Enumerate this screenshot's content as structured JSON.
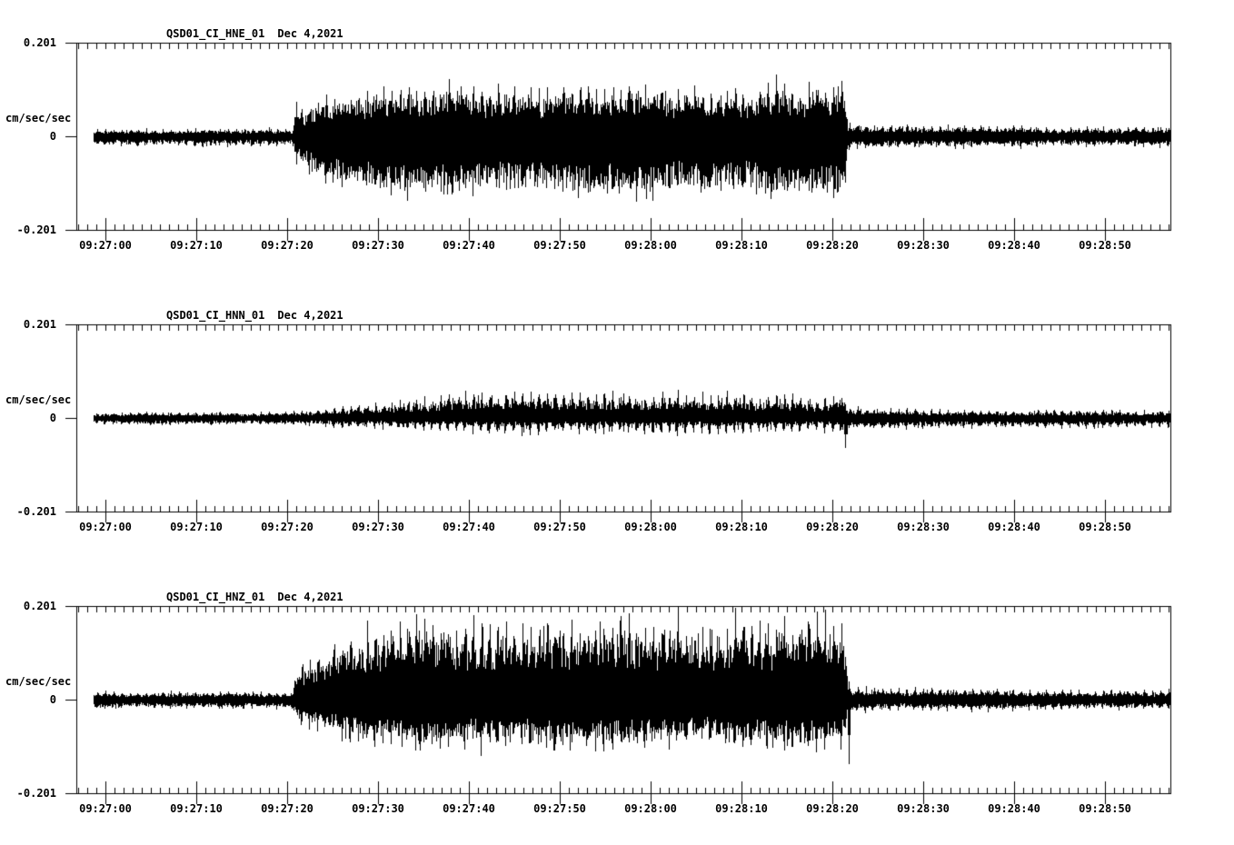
{
  "page": {
    "background": "#ffffff",
    "foreground": "#000000",
    "description": "Three-channel strong-motion seismogram display, station QSD01 (network CI), Dec 4, 2021"
  },
  "chart_data": [
    {
      "type": "line",
      "subtype": "seismogram",
      "station": "QSD01_CI_HNE_01",
      "date": "Dec 4,2021",
      "ylabel": "cm/sec/sec",
      "y_ticks": [
        "0.201",
        "0",
        "-0.201"
      ],
      "ylim": [
        -0.201,
        0.201
      ],
      "x_ticks": [
        "09:27:00",
        "09:27:10",
        "09:27:20",
        "09:27:30",
        "09:27:40",
        "09:27:50",
        "09:28:00",
        "09:28:10",
        "09:28:20",
        "09:28:30",
        "09:28:40",
        "09:28:50"
      ],
      "x_axis": {
        "minor_tick_interval_sec": 1,
        "major_tick_interval_sec": 10,
        "window_start": "09:26:57",
        "window_end": "09:28:57"
      },
      "strong_motion": {
        "start": "09:27:21",
        "end": "09:28:21",
        "peak_amplitude": 0.13
      },
      "envelope_breakpoints_t_cu_cd_pu_pd": [
        [
          -1.3,
          0.01,
          0.014,
          0.018,
          0.024
        ],
        [
          20.6,
          0.01,
          0.014,
          0.018,
          0.024
        ],
        [
          21.0,
          0.035,
          0.04,
          0.06,
          0.065
        ],
        [
          23.0,
          0.052,
          0.068,
          0.085,
          0.095
        ],
        [
          26.0,
          0.066,
          0.092,
          0.105,
          0.118
        ],
        [
          30.0,
          0.072,
          0.1,
          0.113,
          0.126
        ],
        [
          45.0,
          0.074,
          0.103,
          0.12,
          0.13
        ],
        [
          62.0,
          0.072,
          0.101,
          0.115,
          0.127
        ],
        [
          76.0,
          0.073,
          0.102,
          0.117,
          0.128
        ],
        [
          81.4,
          0.073,
          0.102,
          0.117,
          0.128
        ],
        [
          81.7,
          0.017,
          0.02,
          0.03,
          0.034
        ],
        [
          92.0,
          0.014,
          0.016,
          0.026,
          0.028
        ],
        [
          117.1,
          0.012,
          0.014,
          0.022,
          0.024
        ]
      ],
      "spikes": [
        {
          "t": 21.0,
          "up": 0.075,
          "dn": 0.06
        }
      ],
      "seed": 11
    },
    {
      "type": "line",
      "subtype": "seismogram",
      "station": "QSD01_CI_HNN_01",
      "date": "Dec 4,2021",
      "ylabel": "cm/sec/sec",
      "y_ticks": [
        "0.201",
        "0",
        "-0.201"
      ],
      "ylim": [
        -0.201,
        0.201
      ],
      "x_ticks": [
        "09:27:00",
        "09:27:10",
        "09:27:20",
        "09:27:30",
        "09:27:40",
        "09:27:50",
        "09:28:00",
        "09:28:10",
        "09:28:20",
        "09:28:30",
        "09:28:40",
        "09:28:50"
      ],
      "x_axis": {
        "minor_tick_interval_sec": 1,
        "major_tick_interval_sec": 10,
        "window_start": "09:26:57",
        "window_end": "09:28:57"
      },
      "strong_motion": {
        "start": "09:27:25",
        "end": "09:28:21",
        "peak_amplitude": 0.065
      },
      "envelope_breakpoints_t_cu_cd_pu_pd": [
        [
          -1.3,
          0.007,
          0.009,
          0.013,
          0.016
        ],
        [
          20.0,
          0.008,
          0.01,
          0.015,
          0.018
        ],
        [
          27.0,
          0.014,
          0.011,
          0.028,
          0.022
        ],
        [
          38.0,
          0.03,
          0.014,
          0.058,
          0.038
        ],
        [
          52.0,
          0.032,
          0.015,
          0.062,
          0.042
        ],
        [
          66.0,
          0.03,
          0.014,
          0.058,
          0.04
        ],
        [
          78.0,
          0.028,
          0.014,
          0.055,
          0.038
        ],
        [
          81.2,
          0.028,
          0.014,
          0.055,
          0.038
        ],
        [
          81.7,
          0.012,
          0.014,
          0.024,
          0.028
        ],
        [
          95.0,
          0.01,
          0.013,
          0.02,
          0.026
        ],
        [
          117.1,
          0.009,
          0.012,
          0.018,
          0.024
        ]
      ],
      "spikes": [
        {
          "t": 57.0,
          "up": 0.052,
          "dn": 0.03
        },
        {
          "t": 81.4,
          "up": 0.03,
          "dn": 0.064
        }
      ],
      "seed": 22
    },
    {
      "type": "line",
      "subtype": "seismogram",
      "station": "QSD01_CI_HNZ_01",
      "date": "Dec 4,2021",
      "ylabel": "cm/sec/sec",
      "y_ticks": [
        "0.201",
        "0",
        "-0.201"
      ],
      "ylim": [
        -0.201,
        0.201
      ],
      "x_ticks": [
        "09:27:00",
        "09:27:10",
        "09:27:20",
        "09:27:30",
        "09:27:40",
        "09:27:50",
        "09:28:00",
        "09:28:10",
        "09:28:20",
        "09:28:30",
        "09:28:40",
        "09:28:50"
      ],
      "x_axis": {
        "minor_tick_interval_sec": 1,
        "major_tick_interval_sec": 10,
        "window_start": "09:26:57",
        "window_end": "09:28:57"
      },
      "strong_motion": {
        "start": "09:27:21",
        "end": "09:28:21",
        "peak_amplitude": 0.19
      },
      "envelope_breakpoints_t_cu_cd_pu_pd": [
        [
          -1.3,
          0.01,
          0.013,
          0.018,
          0.022
        ],
        [
          20.6,
          0.01,
          0.013,
          0.018,
          0.022
        ],
        [
          21.0,
          0.045,
          0.035,
          0.075,
          0.058
        ],
        [
          23.0,
          0.068,
          0.05,
          0.11,
          0.08
        ],
        [
          26.0,
          0.092,
          0.062,
          0.15,
          0.1
        ],
        [
          30.0,
          0.106,
          0.07,
          0.172,
          0.11
        ],
        [
          36.0,
          0.113,
          0.073,
          0.183,
          0.116
        ],
        [
          52.0,
          0.114,
          0.074,
          0.186,
          0.118
        ],
        [
          68.0,
          0.112,
          0.073,
          0.183,
          0.116
        ],
        [
          81.4,
          0.113,
          0.074,
          0.184,
          0.118
        ],
        [
          81.7,
          0.017,
          0.018,
          0.03,
          0.032
        ],
        [
          92.0,
          0.014,
          0.015,
          0.026,
          0.027
        ],
        [
          117.1,
          0.012,
          0.013,
          0.022,
          0.023
        ]
      ],
      "spikes": [
        {
          "t": 81.8,
          "up": 0.04,
          "dn": 0.138
        }
      ],
      "seed": 33
    }
  ]
}
